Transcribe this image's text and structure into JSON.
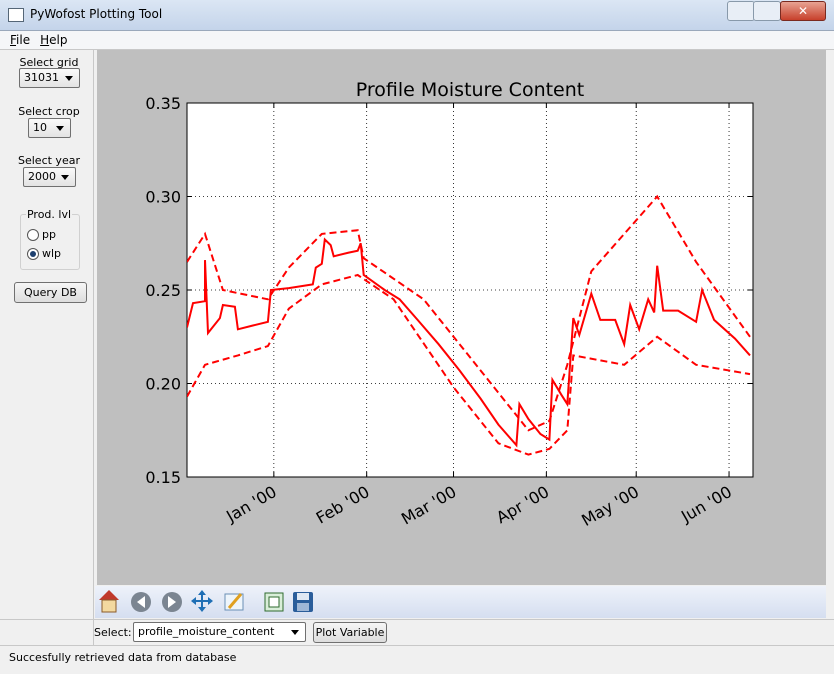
{
  "window": {
    "title": "PyWofost Plotting Tool"
  },
  "menu": [
    "File",
    "Help"
  ],
  "sidebar": {
    "grid_label": "Select grid",
    "grid_value": "31031",
    "crop_label": "Select crop",
    "crop_value": "10",
    "year_label": "Select year",
    "year_value": "2000",
    "prod_label": "Prod. lvl",
    "options": [
      "pp",
      "wlp"
    ],
    "selected_option": 1,
    "query_button": "Query DB"
  },
  "bottom": {
    "select_label": "Select:",
    "select_value": "profile_moisture_content",
    "plot_button": "Plot Variable"
  },
  "status": "Succesfully retrieved data from database",
  "chart_data": {
    "type": "line",
    "title": "Profile Moisture Content",
    "xlim": [
      -29,
      160
    ],
    "xticks": [
      {
        "value": 0,
        "label": "Jan '00"
      },
      {
        "value": 31,
        "label": "Feb '00"
      },
      {
        "value": 60,
        "label": "Mar '00"
      },
      {
        "value": 91,
        "label": "Apr '00"
      },
      {
        "value": 121,
        "label": "May '00"
      },
      {
        "value": 152,
        "label": "Jun '00"
      }
    ],
    "ylim": [
      0.15,
      0.35
    ],
    "yticks": [
      0.15,
      {
        "value": 0.2,
        "label": "0.20"
      },
      0.25,
      {
        "value": 0.3,
        "label": "0.30"
      },
      0.35
    ],
    "grid": true,
    "series": [
      {
        "color": "#ff0000",
        "dashed": false,
        "x": [
          -29,
          -27,
          -23,
          -23,
          -22,
          -18,
          -17,
          -13,
          -12,
          -7,
          -2,
          -1,
          5,
          13,
          14,
          16,
          17,
          19,
          20,
          25,
          28,
          29,
          30,
          37,
          42,
          48,
          55,
          62,
          69,
          75,
          81,
          82,
          85,
          89,
          92,
          93,
          96,
          98,
          100,
          102,
          106,
          109,
          114,
          117,
          119,
          122,
          125,
          127,
          128,
          130,
          135,
          141,
          143,
          147,
          154,
          159
        ],
        "values": [
          0.23,
          0.243,
          0.244,
          0.266,
          0.227,
          0.235,
          0.242,
          0.241,
          0.229,
          0.231,
          0.233,
          0.25,
          0.251,
          0.253,
          0.262,
          0.264,
          0.277,
          0.274,
          0.268,
          0.27,
          0.271,
          0.275,
          0.258,
          0.25,
          0.245,
          0.234,
          0.221,
          0.207,
          0.192,
          0.178,
          0.167,
          0.189,
          0.181,
          0.173,
          0.17,
          0.202,
          0.194,
          0.189,
          0.235,
          0.226,
          0.248,
          0.234,
          0.234,
          0.221,
          0.242,
          0.229,
          0.245,
          0.238,
          0.263,
          0.239,
          0.239,
          0.233,
          0.25,
          0.234,
          0.224,
          0.215
        ]
      },
      {
        "color": "#ff0000",
        "dashed": true,
        "x": [
          -29,
          -23,
          -17,
          -2,
          5,
          16,
          28,
          30,
          50,
          70,
          85,
          92,
          98,
          106,
          128,
          141,
          159
        ],
        "values": [
          0.265,
          0.28,
          0.25,
          0.245,
          0.262,
          0.28,
          0.282,
          0.267,
          0.245,
          0.205,
          0.175,
          0.18,
          0.21,
          0.26,
          0.3,
          0.265,
          0.225
        ]
      },
      {
        "color": "#ff0000",
        "dashed": true,
        "x": [
          -29,
          -23,
          -12,
          -2,
          5,
          16,
          28,
          40,
          60,
          75,
          85,
          92,
          98,
          100,
          117,
          128,
          141,
          159
        ],
        "values": [
          0.193,
          0.21,
          0.215,
          0.22,
          0.24,
          0.253,
          0.258,
          0.245,
          0.198,
          0.168,
          0.162,
          0.165,
          0.175,
          0.215,
          0.21,
          0.225,
          0.21,
          0.205
        ]
      }
    ]
  }
}
